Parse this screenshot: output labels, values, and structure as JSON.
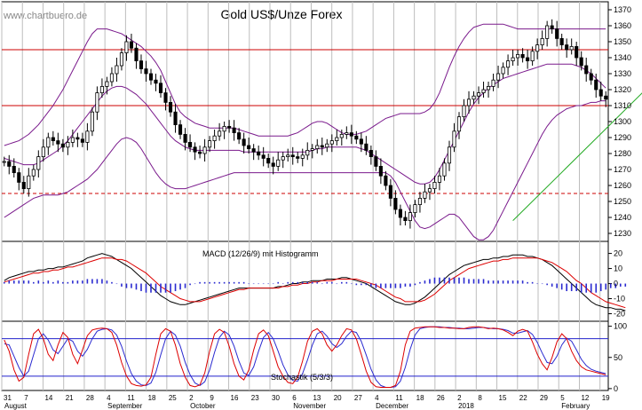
{
  "chart_data": {
    "title": "Gold US$/Unze Forex",
    "watermark": "www.chartbuero.de",
    "panels": [
      {
        "name": "price",
        "type": "candlestick",
        "ylim": [
          1225,
          1375
        ],
        "yticks": [
          1230,
          1240,
          1250,
          1260,
          1270,
          1280,
          1290,
          1300,
          1310,
          1320,
          1330,
          1340,
          1350,
          1360,
          1370
        ],
        "horizontal_lines": [
          {
            "value": 1345,
            "color": "#cc0000",
            "style": "solid"
          },
          {
            "value": 1310,
            "color": "#cc0000",
            "style": "solid"
          },
          {
            "value": 1255,
            "color": "#cc0000",
            "style": "dashed"
          }
        ],
        "trendline": {
          "from": {
            "t": 104,
            "y": 1238
          },
          "to": {
            "t": 147,
            "y": 1368
          },
          "color": "#22aa22"
        },
        "closes": [
          1275,
          1272,
          1268,
          1262,
          1258,
          1266,
          1270,
          1278,
          1284,
          1290,
          1288,
          1286,
          1284,
          1287,
          1290,
          1289,
          1287,
          1294,
          1306,
          1318,
          1322,
          1325,
          1330,
          1335,
          1343,
          1350,
          1346,
          1338,
          1333,
          1330,
          1326,
          1324,
          1318,
          1312,
          1306,
          1298,
          1292,
          1287,
          1284,
          1281,
          1280,
          1284,
          1288,
          1291,
          1294,
          1297,
          1296,
          1293,
          1289,
          1285,
          1283,
          1281,
          1279,
          1277,
          1274,
          1272,
          1276,
          1278,
          1279,
          1278,
          1277,
          1279,
          1282,
          1283,
          1285,
          1284,
          1286,
          1288,
          1290,
          1292,
          1293,
          1291,
          1289,
          1286,
          1282,
          1278,
          1272,
          1266,
          1260,
          1252,
          1245,
          1240,
          1238,
          1243,
          1248,
          1252,
          1256,
          1258,
          1262,
          1266,
          1274,
          1284,
          1294,
          1303,
          1310,
          1314,
          1316,
          1318,
          1320,
          1322,
          1326,
          1330,
          1334,
          1338,
          1340,
          1342,
          1340,
          1338,
          1344,
          1348,
          1352,
          1360,
          1358,
          1352,
          1348,
          1345,
          1347,
          1340,
          1335,
          1330,
          1326,
          1320,
          1316,
          1314
        ],
        "upper_band": [
          1285,
          1286,
          1287,
          1288,
          1290,
          1292,
          1295,
          1298,
          1302,
          1306,
          1310,
          1315,
          1320,
          1326,
          1332,
          1338,
          1344,
          1350,
          1355,
          1358,
          1358,
          1358,
          1357,
          1356,
          1355,
          1353,
          1351,
          1349,
          1347,
          1344,
          1341,
          1337,
          1332,
          1325,
          1318,
          1311,
          1306,
          1303,
          1301,
          1299,
          1298,
          1297,
          1296,
          1296,
          1296,
          1296,
          1296,
          1296,
          1295,
          1294,
          1293,
          1292,
          1291,
          1291,
          1291,
          1291,
          1291,
          1291,
          1291,
          1292,
          1293,
          1295,
          1297,
          1299,
          1300,
          1300,
          1299,
          1297,
          1295,
          1293,
          1292,
          1292,
          1292,
          1293,
          1294,
          1296,
          1298,
          1300,
          1302,
          1303,
          1304,
          1305,
          1305,
          1305,
          1305,
          1305,
          1306,
          1308,
          1312,
          1318,
          1326,
          1334,
          1341,
          1347,
          1352,
          1356,
          1359,
          1360,
          1361,
          1361,
          1361,
          1361,
          1361,
          1360,
          1359,
          1358,
          1358,
          1358,
          1358,
          1358,
          1358,
          1358,
          1358,
          1358,
          1358,
          1358,
          1358,
          1358,
          1358,
          1358,
          1358,
          1358,
          1358,
          1358
        ],
        "middle_band": [
          1277,
          1276,
          1275,
          1274,
          1273,
          1273,
          1273,
          1274,
          1276,
          1278,
          1280,
          1282,
          1285,
          1288,
          1292,
          1296,
          1300,
          1304,
          1308,
          1312,
          1316,
          1319,
          1321,
          1322,
          1322,
          1321,
          1319,
          1317,
          1314,
          1311,
          1307,
          1303,
          1299,
          1295,
          1291,
          1288,
          1286,
          1284,
          1283,
          1282,
          1282,
          1282,
          1282,
          1282,
          1282,
          1282,
          1282,
          1282,
          1282,
          1281,
          1281,
          1281,
          1281,
          1281,
          1281,
          1281,
          1281,
          1281,
          1281,
          1281,
          1281,
          1281,
          1281,
          1282,
          1283,
          1283,
          1284,
          1284,
          1284,
          1284,
          1284,
          1284,
          1284,
          1283,
          1282,
          1280,
          1278,
          1276,
          1274,
          1272,
          1270,
          1268,
          1266,
          1264,
          1262,
          1261,
          1261,
          1262,
          1265,
          1270,
          1276,
          1282,
          1288,
          1294,
          1300,
          1306,
          1311,
          1315,
          1318,
          1321,
          1323,
          1325,
          1327,
          1328,
          1329,
          1330,
          1331,
          1332,
          1333,
          1334,
          1335,
          1336,
          1336,
          1336,
          1336,
          1336,
          1336,
          1335,
          1334,
          1332,
          1330,
          1327,
          1324,
          1321
        ],
        "lower_band": [
          1240,
          1242,
          1244,
          1246,
          1248,
          1250,
          1252,
          1253,
          1254,
          1254,
          1254,
          1254,
          1255,
          1256,
          1258,
          1260,
          1262,
          1264,
          1267,
          1270,
          1274,
          1278,
          1282,
          1286,
          1289,
          1290,
          1289,
          1287,
          1283,
          1278,
          1273,
          1268,
          1264,
          1261,
          1259,
          1258,
          1258,
          1258,
          1259,
          1260,
          1261,
          1262,
          1263,
          1264,
          1265,
          1266,
          1267,
          1268,
          1268,
          1268,
          1268,
          1268,
          1268,
          1268,
          1268,
          1268,
          1268,
          1268,
          1268,
          1268,
          1268,
          1268,
          1268,
          1268,
          1268,
          1268,
          1268,
          1268,
          1268,
          1268,
          1268,
          1268,
          1268,
          1268,
          1268,
          1268,
          1268,
          1268,
          1268,
          1266,
          1262,
          1256,
          1250,
          1244,
          1238,
          1234,
          1233,
          1234,
          1236,
          1238,
          1240,
          1242,
          1242,
          1240,
          1236,
          1232,
          1228,
          1226,
          1226,
          1228,
          1232,
          1238,
          1244,
          1250,
          1256,
          1262,
          1268,
          1274,
          1280,
          1286,
          1292,
          1297,
          1301,
          1304,
          1306,
          1308,
          1309,
          1310,
          1310,
          1311,
          1312,
          1312,
          1313,
          1313
        ]
      },
      {
        "name": "macd",
        "label": "MACD (12/26/9) mit Histogramm",
        "ylim": [
          -25,
          28
        ],
        "yticks": [
          -20,
          -10,
          0,
          10,
          20
        ],
        "macd": [
          2,
          4,
          5,
          6,
          7,
          8,
          8,
          9,
          9,
          10,
          10,
          11,
          11,
          12,
          13,
          14,
          15,
          17,
          18,
          19,
          20,
          19,
          18,
          16,
          14,
          12,
          10,
          7,
          4,
          1,
          -2,
          -5,
          -8,
          -10,
          -12,
          -13,
          -14,
          -14,
          -13,
          -12,
          -11,
          -10,
          -9,
          -8,
          -7,
          -6,
          -5,
          -4,
          -3,
          -3,
          -3,
          -3,
          -3,
          -3,
          -3,
          -3,
          -2,
          -2,
          -1,
          0,
          0,
          1,
          1,
          2,
          2,
          2,
          3,
          3,
          3,
          4,
          4,
          3,
          2,
          1,
          0,
          -2,
          -4,
          -6,
          -8,
          -10,
          -12,
          -13,
          -14,
          -14,
          -13,
          -11,
          -9,
          -6,
          -3,
          0,
          3,
          6,
          8,
          10,
          12,
          13,
          14,
          15,
          16,
          16,
          17,
          17,
          18,
          18,
          19,
          19,
          19,
          18,
          18,
          17,
          16,
          14,
          12,
          9,
          6,
          3,
          0,
          -3,
          -6,
          -9,
          -12,
          -14,
          -15,
          -16,
          -16,
          -17,
          -17,
          -18
        ],
        "signal": [
          1,
          2,
          3,
          4,
          5,
          6,
          7,
          7,
          8,
          8,
          9,
          9,
          10,
          11,
          11,
          12,
          13,
          14,
          15,
          16,
          17,
          17,
          17,
          16,
          16,
          15,
          13,
          11,
          9,
          7,
          4,
          1,
          -2,
          -4,
          -6,
          -8,
          -10,
          -11,
          -12,
          -12,
          -12,
          -11,
          -10,
          -9,
          -8,
          -7,
          -6,
          -5,
          -4,
          -4,
          -3,
          -3,
          -3,
          -3,
          -3,
          -3,
          -3,
          -2,
          -2,
          -1,
          -1,
          0,
          0,
          1,
          1,
          2,
          2,
          2,
          3,
          3,
          3,
          3,
          3,
          2,
          1,
          0,
          -1,
          -3,
          -5,
          -7,
          -9,
          -10,
          -12,
          -12,
          -12,
          -12,
          -11,
          -9,
          -7,
          -4,
          -1,
          2,
          4,
          6,
          8,
          10,
          11,
          12,
          13,
          14,
          15,
          15,
          16,
          16,
          17,
          17,
          17,
          17,
          17,
          17,
          16,
          15,
          14,
          12,
          10,
          8,
          5,
          2,
          0,
          -3,
          -6,
          -8,
          -10,
          -12,
          -13,
          -14,
          -15,
          -16
        ]
      },
      {
        "name": "stochastic",
        "label": "Stochastik (5/3/3)",
        "ylim": [
          -3,
          108
        ],
        "yticks": [
          0,
          50,
          100
        ],
        "levels": [
          80,
          20
        ],
        "k": [
          78,
          60,
          30,
          12,
          18,
          55,
          88,
          95,
          80,
          55,
          45,
          70,
          90,
          82,
          55,
          40,
          62,
          85,
          94,
          96,
          97,
          96,
          90,
          70,
          42,
          20,
          8,
          5,
          4,
          6,
          18,
          55,
          88,
          96,
          92,
          70,
          40,
          18,
          5,
          3,
          6,
          25,
          60,
          88,
          95,
          90,
          68,
          40,
          20,
          14,
          30,
          62,
          88,
          94,
          85,
          60,
          35,
          20,
          10,
          8,
          18,
          44,
          76,
          92,
          96,
          88,
          70,
          60,
          70,
          85,
          96,
          94,
          80,
          55,
          28,
          10,
          3,
          2,
          2,
          2,
          5,
          28,
          70,
          92,
          97,
          98,
          99,
          99,
          99,
          98,
          98,
          97,
          97,
          96,
          96,
          98,
          99,
          99,
          98,
          96,
          97,
          96,
          94,
          90,
          85,
          92,
          95,
          92,
          75,
          55,
          40,
          30,
          50,
          75,
          88,
          80,
          60,
          45,
          35,
          30,
          28,
          26,
          24,
          22
        ],
        "d": [
          72,
          70,
          52,
          34,
          20,
          28,
          54,
          80,
          88,
          78,
          62,
          56,
          68,
          80,
          76,
          60,
          52,
          63,
          80,
          92,
          95,
          96,
          94,
          86,
          68,
          44,
          24,
          12,
          6,
          5,
          9,
          26,
          54,
          80,
          92,
          86,
          68,
          42,
          22,
          9,
          5,
          11,
          30,
          58,
          82,
          92,
          86,
          68,
          44,
          25,
          21,
          35,
          60,
          82,
          90,
          80,
          60,
          38,
          22,
          13,
          12,
          24,
          46,
          70,
          88,
          92,
          84,
          72,
          66,
          72,
          84,
          92,
          90,
          76,
          54,
          31,
          14,
          5,
          2,
          2,
          3,
          12,
          34,
          63,
          86,
          96,
          98,
          99,
          99,
          99,
          98,
          98,
          97,
          97,
          96,
          96,
          97,
          98,
          98,
          97,
          96,
          96,
          95,
          93,
          89,
          89,
          91,
          93,
          87,
          74,
          57,
          42,
          40,
          52,
          70,
          81,
          76,
          62,
          47,
          37,
          31,
          28,
          26,
          24
        ]
      }
    ],
    "x_tick_labels": [
      "31",
      "7",
      "14",
      "21",
      "28",
      "4",
      "11",
      "18",
      "25",
      "2",
      "9",
      "16",
      "23",
      "30",
      "6",
      "13",
      "20",
      "27",
      "4",
      "11",
      "18",
      "26",
      "2",
      "8",
      "15",
      "22",
      "29",
      "5",
      "12",
      "19"
    ],
    "month_labels": [
      "August",
      "September",
      "October",
      "November",
      "December",
      "2018",
      "February"
    ]
  }
}
